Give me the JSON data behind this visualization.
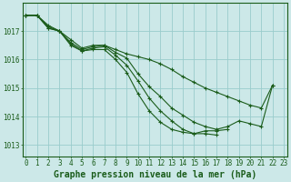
{
  "background_color": "#cce8e8",
  "grid_color": "#99cccc",
  "line_color": "#1a5c1a",
  "xlabel": "Graphe pression niveau de la mer (hPa)",
  "xlabel_fontsize": 7.0,
  "tick_fontsize": 5.5,
  "ytick_vals": [
    1013,
    1014,
    1015,
    1016,
    1017
  ],
  "ylim": [
    1012.6,
    1018.0
  ],
  "xlim": [
    -0.3,
    23.3
  ],
  "series": [
    {
      "x": [
        0,
        1,
        2,
        3,
        4,
        5,
        6,
        7,
        8,
        9,
        10,
        11,
        12,
        13,
        14,
        15,
        16,
        17,
        18,
        19,
        20,
        21,
        22,
        23
      ],
      "y": [
        1017.55,
        1017.55,
        1017.2,
        1017.0,
        1016.7,
        1016.4,
        1016.5,
        1016.5,
        1016.35,
        1016.2,
        1016.1,
        1016.0,
        1015.85,
        1015.65,
        1015.4,
        1015.2,
        1015.0,
        1014.85,
        1014.7,
        1014.55,
        1014.4,
        1014.3,
        1015.1,
        null
      ]
    },
    {
      "x": [
        0,
        1,
        2,
        3,
        4,
        5,
        6,
        7,
        8,
        9,
        10,
        11,
        12,
        13,
        14,
        15,
        16,
        17,
        18,
        19,
        20,
        21,
        22,
        23
      ],
      "y": [
        1017.55,
        1017.55,
        1017.15,
        1017.0,
        1016.6,
        1016.35,
        1016.45,
        1016.5,
        1016.25,
        1016.05,
        1015.5,
        1015.05,
        1014.7,
        1014.3,
        1014.05,
        1013.8,
        1013.65,
        1013.55,
        1013.65,
        1013.85,
        1013.75,
        1013.65,
        1015.1,
        null
      ]
    },
    {
      "x": [
        0,
        1,
        2,
        3,
        4,
        5,
        6,
        7,
        8,
        9,
        10,
        11,
        12,
        13,
        14,
        15,
        16,
        17,
        18,
        19,
        20,
        21,
        22,
        23
      ],
      "y": [
        1017.55,
        1017.55,
        1017.1,
        1017.0,
        1016.55,
        1016.3,
        1016.4,
        1016.45,
        1016.15,
        1015.8,
        1015.25,
        1014.65,
        1014.2,
        1013.85,
        1013.55,
        1013.4,
        1013.5,
        1013.5,
        1013.55,
        null,
        null,
        null,
        null,
        null
      ]
    },
    {
      "x": [
        0,
        1,
        2,
        3,
        4,
        5,
        6,
        7,
        8,
        9,
        10,
        11,
        12,
        13,
        14,
        15,
        16,
        17,
        18,
        19,
        20,
        21,
        22,
        23
      ],
      "y": [
        1017.55,
        1017.55,
        1017.1,
        1017.0,
        1016.5,
        1016.3,
        1016.35,
        1016.35,
        1016.0,
        1015.55,
        1014.8,
        1014.2,
        1013.8,
        1013.55,
        1013.45,
        1013.4,
        1013.4,
        1013.35,
        null,
        null,
        null,
        null,
        null,
        null
      ]
    }
  ]
}
